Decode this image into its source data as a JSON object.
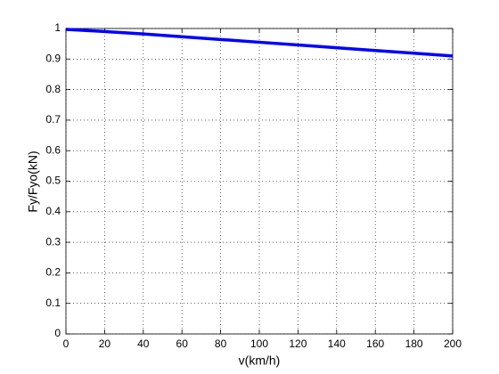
{
  "chart_data": {
    "type": "line",
    "x_label": "v(km/h)",
    "y_label": "Fy/Fyo(kN)",
    "x": [
      0,
      20,
      40,
      60,
      80,
      100,
      120,
      140,
      160,
      180,
      200
    ],
    "values": [
      0.997,
      0.99,
      0.982,
      0.973,
      0.964,
      0.955,
      0.946,
      0.937,
      0.928,
      0.919,
      0.91
    ],
    "color": "#0000ff",
    "xlim": [
      0,
      200
    ],
    "xticks": [
      0,
      20,
      40,
      60,
      80,
      100,
      120,
      140,
      160,
      180,
      200
    ],
    "ylim": [
      0,
      1
    ],
    "yticks": [
      0,
      0.1,
      0.2,
      0.3,
      0.4,
      0.5,
      0.6,
      0.7,
      0.8,
      0.9,
      1
    ],
    "grid": true
  }
}
